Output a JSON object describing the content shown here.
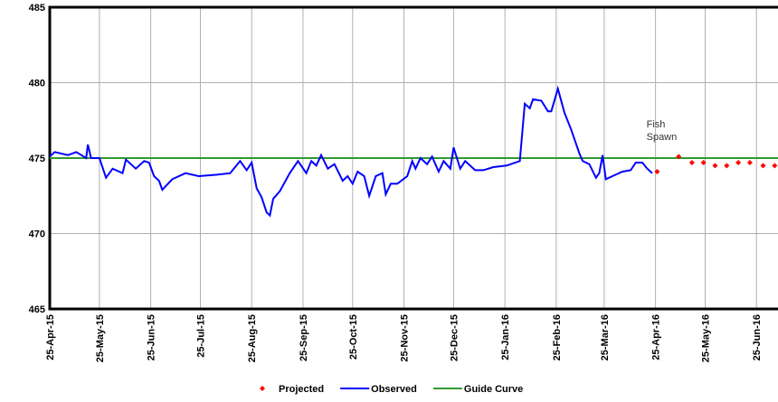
{
  "chart_data": {
    "type": "line",
    "ylim": [
      465,
      485
    ],
    "yticks": [
      465,
      470,
      475,
      480,
      485
    ],
    "grid": true,
    "xlim": [
      "2015-04-25",
      "2016-07-08"
    ],
    "xticks": [
      {
        "value": "2015-04-25",
        "label": "25-Apr-15"
      },
      {
        "value": "2015-05-25",
        "label": "25-May-15"
      },
      {
        "value": "2015-06-25",
        "label": "25-Jun-15"
      },
      {
        "value": "2015-07-25",
        "label": "25-Jul-15"
      },
      {
        "value": "2015-08-25",
        "label": "25-Aug-15"
      },
      {
        "value": "2015-09-25",
        "label": "25-Sep-15"
      },
      {
        "value": "2015-10-25",
        "label": "25-Oct-15"
      },
      {
        "value": "2015-11-25",
        "label": "25-Nov-15"
      },
      {
        "value": "2015-12-25",
        "label": "25-Dec-15"
      },
      {
        "value": "2016-01-25",
        "label": "25-Jan-16"
      },
      {
        "value": "2016-02-25",
        "label": "25-Feb-16"
      },
      {
        "value": "2016-03-25",
        "label": "25-Mar-16"
      },
      {
        "value": "2016-04-25",
        "label": "25-Apr-16"
      },
      {
        "value": "2016-05-25",
        "label": "25-May-16"
      },
      {
        "value": "2016-06-25",
        "label": "25-Jun-16"
      }
    ],
    "series": [
      {
        "name": "Projected",
        "color": "#ff0000",
        "style": "points",
        "x": [
          "2016-04-26",
          "2016-05-09",
          "2016-05-17",
          "2016-05-24",
          "2016-05-31",
          "2016-06-07",
          "2016-06-14",
          "2016-06-21",
          "2016-06-29",
          "2016-07-06"
        ],
        "values": [
          474.1,
          475.1,
          474.7,
          474.7,
          474.5,
          474.5,
          474.7,
          474.7,
          474.5,
          474.5
        ]
      },
      {
        "name": "Observed",
        "color": "#0000ff",
        "style": "line",
        "x": [
          "2015-04-25",
          "2015-04-28",
          "2015-05-06",
          "2015-05-11",
          "2015-05-17",
          "2015-05-18",
          "2015-05-20",
          "2015-05-25",
          "2015-05-29",
          "2015-06-02",
          "2015-06-08",
          "2015-06-10",
          "2015-06-16",
          "2015-06-21",
          "2015-06-24",
          "2015-06-27",
          "2015-06-30",
          "2015-07-02",
          "2015-07-08",
          "2015-07-16",
          "2015-07-24",
          "2015-08-04",
          "2015-08-12",
          "2015-08-18",
          "2015-08-22",
          "2015-08-25",
          "2015-08-28",
          "2015-08-31",
          "2015-09-03",
          "2015-09-05",
          "2015-09-07",
          "2015-09-11",
          "2015-09-17",
          "2015-09-22",
          "2015-09-27",
          "2015-09-30",
          "2015-10-03",
          "2015-10-06",
          "2015-10-10",
          "2015-10-14",
          "2015-10-19",
          "2015-10-22",
          "2015-10-25",
          "2015-10-28",
          "2015-11-01",
          "2015-11-04",
          "2015-11-08",
          "2015-11-12",
          "2015-11-14",
          "2015-11-17",
          "2015-11-21",
          "2015-11-27",
          "2015-11-30",
          "2015-12-02",
          "2015-12-05",
          "2015-12-09",
          "2015-12-12",
          "2015-12-16",
          "2015-12-19",
          "2015-12-23",
          "2015-12-25",
          "2015-12-29",
          "2016-01-01",
          "2016-01-07",
          "2016-01-12",
          "2016-01-18",
          "2016-01-26",
          "2016-02-03",
          "2016-02-06",
          "2016-02-09",
          "2016-02-11",
          "2016-02-16",
          "2016-02-20",
          "2016-02-22",
          "2016-02-26",
          "2016-03-01",
          "2016-03-05",
          "2016-03-10",
          "2016-03-12",
          "2016-03-16",
          "2016-03-20",
          "2016-03-22",
          "2016-03-24",
          "2016-03-26",
          "2016-03-30",
          "2016-04-05",
          "2016-04-10",
          "2016-04-13",
          "2016-04-17",
          "2016-04-20",
          "2016-04-23"
        ],
        "values": [
          475.1,
          475.4,
          475.2,
          475.4,
          475.0,
          475.9,
          475.0,
          475.0,
          473.7,
          474.3,
          474.0,
          474.9,
          474.3,
          474.8,
          474.7,
          473.8,
          473.5,
          472.9,
          473.6,
          474.0,
          473.8,
          473.9,
          474.0,
          474.8,
          474.2,
          474.7,
          473.0,
          472.4,
          471.4,
          471.2,
          472.3,
          472.8,
          474.0,
          474.8,
          474.0,
          474.8,
          474.5,
          475.2,
          474.3,
          474.6,
          473.5,
          473.8,
          473.3,
          474.1,
          473.8,
          472.5,
          473.8,
          474.0,
          472.6,
          473.3,
          473.3,
          473.8,
          474.8,
          474.3,
          475.0,
          474.6,
          475.1,
          474.1,
          474.8,
          474.3,
          475.7,
          474.3,
          474.8,
          474.2,
          474.2,
          474.4,
          474.5,
          474.8,
          478.6,
          478.3,
          478.9,
          478.8,
          478.1,
          478.1,
          479.6,
          478.0,
          476.9,
          475.3,
          474.8,
          474.6,
          473.7,
          474.0,
          475.2,
          473.6,
          473.8,
          474.1,
          474.2,
          474.7,
          474.7,
          474.3,
          474.0
        ]
      },
      {
        "name": "Guide Curve",
        "color": "#339933",
        "style": "line",
        "x": [
          "2015-04-25",
          "2016-07-08"
        ],
        "values": [
          475,
          475
        ]
      }
    ],
    "annotations": [
      {
        "text": [
          "Fish",
          "Spawn"
        ],
        "x": "2016-04-25",
        "y": 476.2
      }
    ]
  }
}
